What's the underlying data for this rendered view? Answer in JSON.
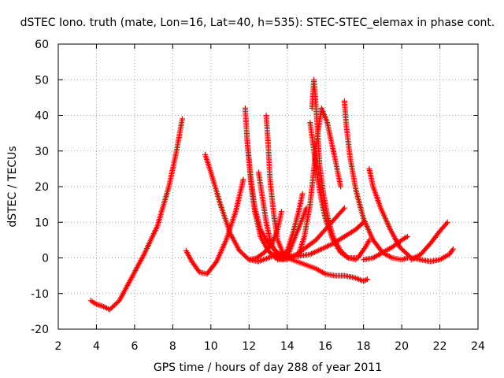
{
  "chart_data": {
    "type": "scatter",
    "title": "dSTEC Iono. truth (mate, Lon=16, Lat=40, h=535): STEC-STEC_elemax in phase cont.",
    "xlabel": "GPS time / hours of day 288 of year 2011",
    "ylabel": "dSTEC  / TECUs",
    "xlim": [
      2,
      24
    ],
    "ylim": [
      -20,
      60
    ],
    "x_ticks": [
      "2",
      "4",
      "6",
      "8",
      "10",
      "12",
      "14",
      "16",
      "18",
      "20",
      "22",
      "24"
    ],
    "y_ticks": [
      "-20",
      "-10",
      "0",
      "10",
      "20",
      "30",
      "40",
      "50",
      "60"
    ],
    "grid": true,
    "marker": "+",
    "color": "#ff0000",
    "series": [
      {
        "x": [
          3.7,
          4.0,
          4.3,
          4.7,
          5.2,
          5.8,
          6.5,
          7.2,
          7.8,
          8.2,
          8.5
        ],
        "y": [
          -12,
          -13,
          -13.5,
          -14.5,
          -12,
          -6,
          1,
          9,
          20,
          30,
          39
        ]
      },
      {
        "x": [
          8.7,
          9.0,
          9.4,
          9.8,
          10.3,
          10.8,
          11.3,
          11.7
        ],
        "y": [
          2,
          -1,
          -4,
          -4.5,
          -1,
          5,
          13,
          22
        ]
      },
      {
        "x": [
          9.7,
          10.0,
          10.5,
          11.0,
          11.5,
          12.0,
          12.5,
          13.0,
          13.5,
          14.0,
          14.3
        ],
        "y": [
          29,
          24,
          15,
          7,
          2,
          -0.5,
          -1,
          0,
          1,
          0.5,
          0
        ]
      },
      {
        "x": [
          11.8,
          11.9,
          12.1,
          12.3,
          12.6,
          13.0,
          13.5,
          14.0,
          14.5,
          15.0,
          15.5,
          16.0,
          16.5,
          17.0,
          17.5,
          18.0,
          18.2
        ],
        "y": [
          42,
          33,
          22,
          14,
          8,
          4,
          1.5,
          0,
          -1,
          -2,
          -3,
          -4.5,
          -5,
          -5,
          -5.5,
          -6.5,
          -6
        ]
      },
      {
        "x": [
          11.9,
          12.1,
          12.3,
          12.6,
          13.0,
          13.4,
          13.8
        ],
        "y": [
          33,
          21,
          13,
          6,
          2,
          0,
          -0.5
        ]
      },
      {
        "x": [
          12.5,
          12.7,
          12.9,
          13.1,
          13.4,
          13.7,
          14.0
        ],
        "y": [
          24,
          17,
          10,
          5,
          1.5,
          0,
          -0.5
        ]
      },
      {
        "x": [
          12.9,
          13.0,
          13.1,
          13.3,
          13.5,
          13.8,
          14.1
        ],
        "y": [
          40,
          32,
          22,
          12,
          5,
          1,
          0
        ]
      },
      {
        "x": [
          12.0,
          12.4,
          12.8,
          13.2,
          13.5,
          13.7
        ],
        "y": [
          -0.5,
          0,
          1.5,
          4,
          8,
          13
        ]
      },
      {
        "x": [
          13.7,
          14.0,
          14.3,
          14.6,
          14.8
        ],
        "y": [
          0,
          2,
          7,
          13,
          18
        ]
      },
      {
        "x": [
          14.0,
          14.2,
          14.5,
          14.8,
          15.0
        ],
        "y": [
          0,
          3,
          7,
          11,
          14
        ]
      },
      {
        "x": [
          15.3,
          15.4,
          15.5,
          15.6,
          15.7,
          15.9,
          16.1,
          16.4,
          16.8,
          17.2,
          17.7,
          18.1,
          18.3
        ],
        "y": [
          42,
          50,
          43,
          35,
          26,
          18,
          12,
          6,
          2,
          0,
          0,
          3,
          5
        ]
      },
      {
        "x": [
          15.2,
          15.4,
          15.6,
          15.8,
          16.0,
          16.4,
          16.8,
          17.2,
          17.6
        ],
        "y": [
          38,
          30,
          22,
          16,
          11,
          5,
          1.5,
          0,
          -0.5
        ]
      },
      {
        "x": [
          14.6,
          14.9,
          15.2,
          15.4,
          15.6,
          15.8,
          16.1,
          16.5,
          16.8
        ],
        "y": [
          1,
          6,
          15,
          25,
          35,
          42,
          38,
          28,
          20
        ]
      },
      {
        "x": [
          17.0,
          17.1,
          17.3,
          17.6,
          18.0,
          18.5,
          19.0,
          19.5,
          20.0,
          20.3
        ],
        "y": [
          44,
          37,
          28,
          19,
          11,
          5,
          1.5,
          0,
          -0.5,
          0
        ]
      },
      {
        "x": [
          18.3,
          18.5,
          18.9,
          19.4,
          19.9,
          20.5,
          21.0,
          21.5,
          22.0,
          22.5,
          22.7
        ],
        "y": [
          25,
          20,
          14,
          8,
          3,
          0,
          -0.5,
          -1,
          -0.5,
          1,
          2.5
        ]
      },
      {
        "x": [
          13.5,
          14.0,
          14.5,
          15.0,
          15.5,
          16.0,
          16.5,
          17.0
        ],
        "y": [
          -0.5,
          0,
          1,
          3,
          5,
          8,
          11,
          14
        ]
      },
      {
        "x": [
          14.0,
          14.6,
          15.2,
          15.8,
          16.4,
          17.0,
          17.6,
          18.0
        ],
        "y": [
          0,
          0.5,
          1,
          2.5,
          4,
          6,
          8,
          10
        ]
      },
      {
        "x": [
          18.0,
          18.5,
          19.0,
          19.5,
          20.0,
          20.3
        ],
        "y": [
          -0.5,
          0,
          1.5,
          3,
          5,
          6
        ]
      },
      {
        "x": [
          20.5,
          21.0,
          21.5,
          22.0,
          22.4
        ],
        "y": [
          -0.5,
          1,
          4,
          7.5,
          10
        ]
      }
    ]
  }
}
